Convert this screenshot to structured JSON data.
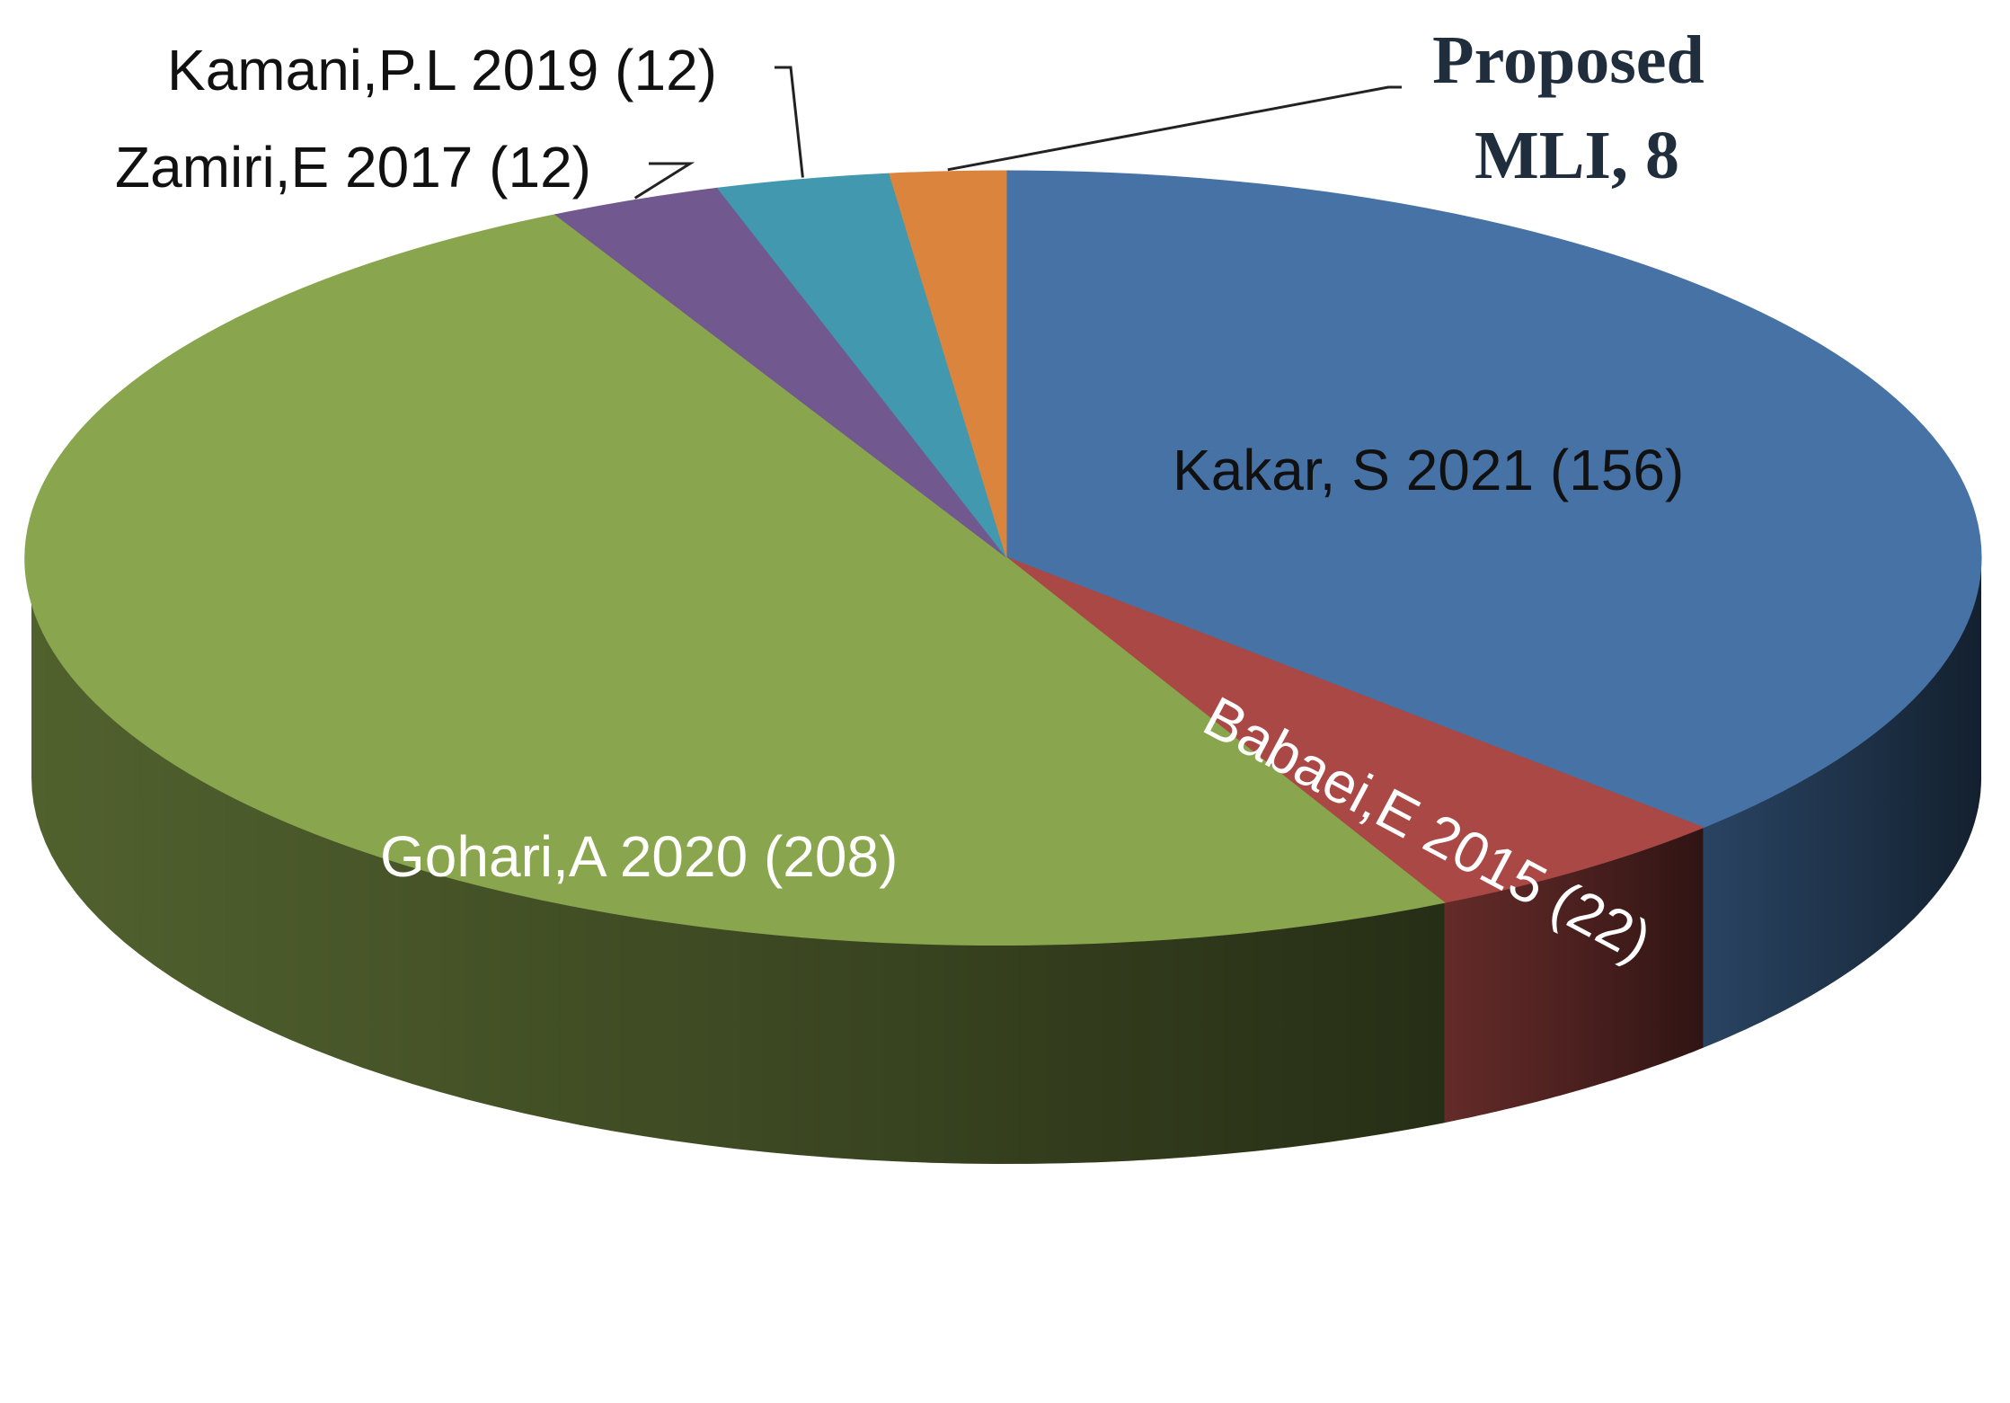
{
  "chart_data": {
    "type": "pie",
    "style": "3d",
    "title": "",
    "start_angle_deg": 0,
    "direction": "clockwise",
    "slices": [
      {
        "label": "Kakar, S 2021 (156)",
        "value": 156,
        "color": "#4672A6"
      },
      {
        "label": "Babaei,E 2015 (22)",
        "value": 22,
        "color": "#A94845"
      },
      {
        "label": "Gohari,A 2020 (208)",
        "value": 208,
        "color": "#89A54E"
      },
      {
        "label": "Zamiri,E 2017 (12)",
        "value": 12,
        "color": "#71588F"
      },
      {
        "label": "Kamani,P.L 2019 (12)",
        "value": 12,
        "color": "#4198AF"
      },
      {
        "label": "Proposed MLI, 8",
        "value": 8,
        "color": "#DB843D",
        "label_lines": [
          "Proposed",
          "MLI, 8"
        ]
      }
    ]
  }
}
